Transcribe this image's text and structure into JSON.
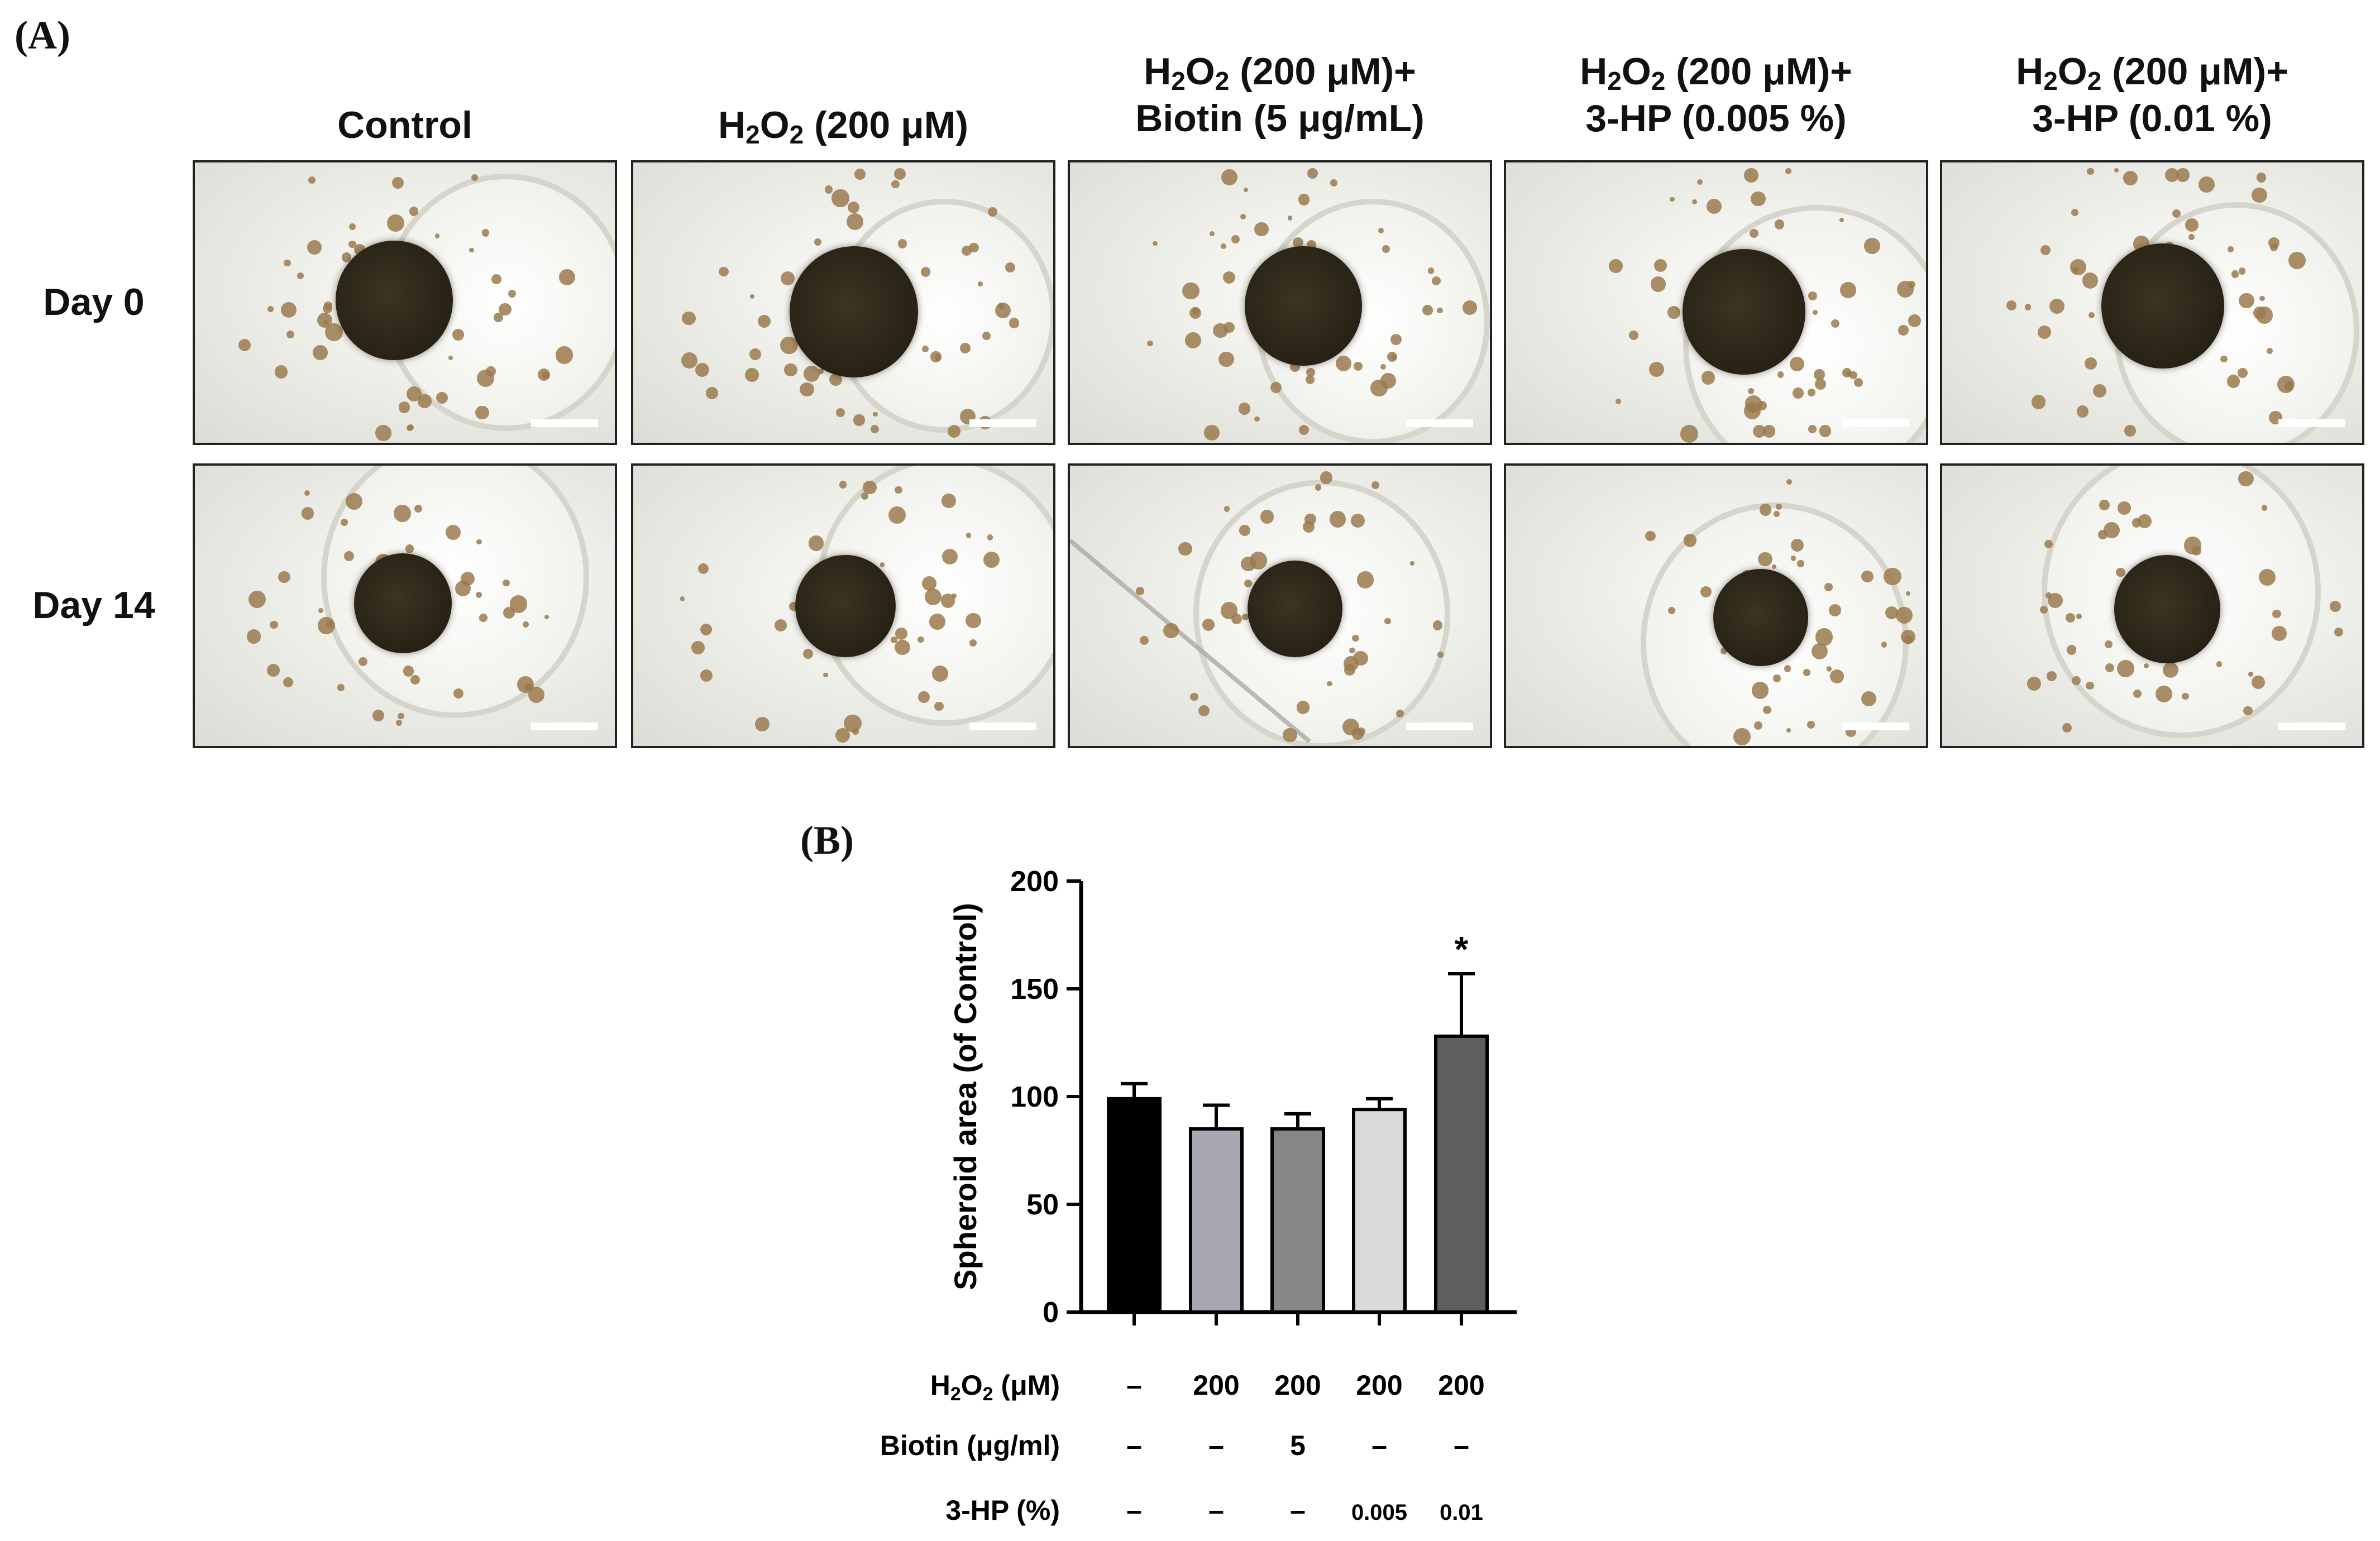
{
  "panel_a": {
    "label": "(A)",
    "column_headers": [
      {
        "line1": "Control",
        "line2": ""
      },
      {
        "line1": "H<sub>2</sub>O<sub>2</sub> (200 μM)",
        "line2": ""
      },
      {
        "line1": "H<sub>2</sub>O<sub>2</sub> (200 μM)+",
        "line2": "Biotin (5 μg/mL)"
      },
      {
        "line1": "H<sub>2</sub>O<sub>2</sub> (200 μM)+",
        "line2": "3-HP (0.005 %)"
      },
      {
        "line1": "H<sub>2</sub>O<sub>2</sub> (200 μM)+",
        "line2": "3-HP (0.01 %)"
      }
    ],
    "row_headers": [
      "Day 0",
      "Day 14"
    ]
  },
  "panel_b": {
    "label": "(B)"
  },
  "chart_data": {
    "type": "bar",
    "title": "",
    "ylabel": "Spheroid area (of Control)",
    "ylim": [
      0,
      200
    ],
    "yticks": [
      0,
      50,
      100,
      150,
      200
    ],
    "grid": false,
    "bars": [
      {
        "value": 99,
        "error": 7,
        "color": "#000000",
        "significance": ""
      },
      {
        "value": 85,
        "error": 11,
        "color": "#a9a8b2",
        "significance": ""
      },
      {
        "value": 85,
        "error": 7,
        "color": "#868686",
        "significance": ""
      },
      {
        "value": 94,
        "error": 5,
        "color": "#d9d9d9",
        "significance": ""
      },
      {
        "value": 128,
        "error": 29,
        "color": "#5e5e5e",
        "significance": "*"
      }
    ],
    "condition_table": [
      {
        "label": "H<sub>2</sub>O<sub>2</sub> (μM)",
        "values": [
          "–",
          "200",
          "200",
          "200",
          "200"
        ]
      },
      {
        "label": "Biotin (μg/ml)",
        "values": [
          "–",
          "–",
          "5",
          "–",
          "–"
        ]
      },
      {
        "label": "3-HP (%)",
        "values": [
          "–",
          "–",
          "–",
          "0.005",
          "0.01"
        ]
      }
    ]
  }
}
